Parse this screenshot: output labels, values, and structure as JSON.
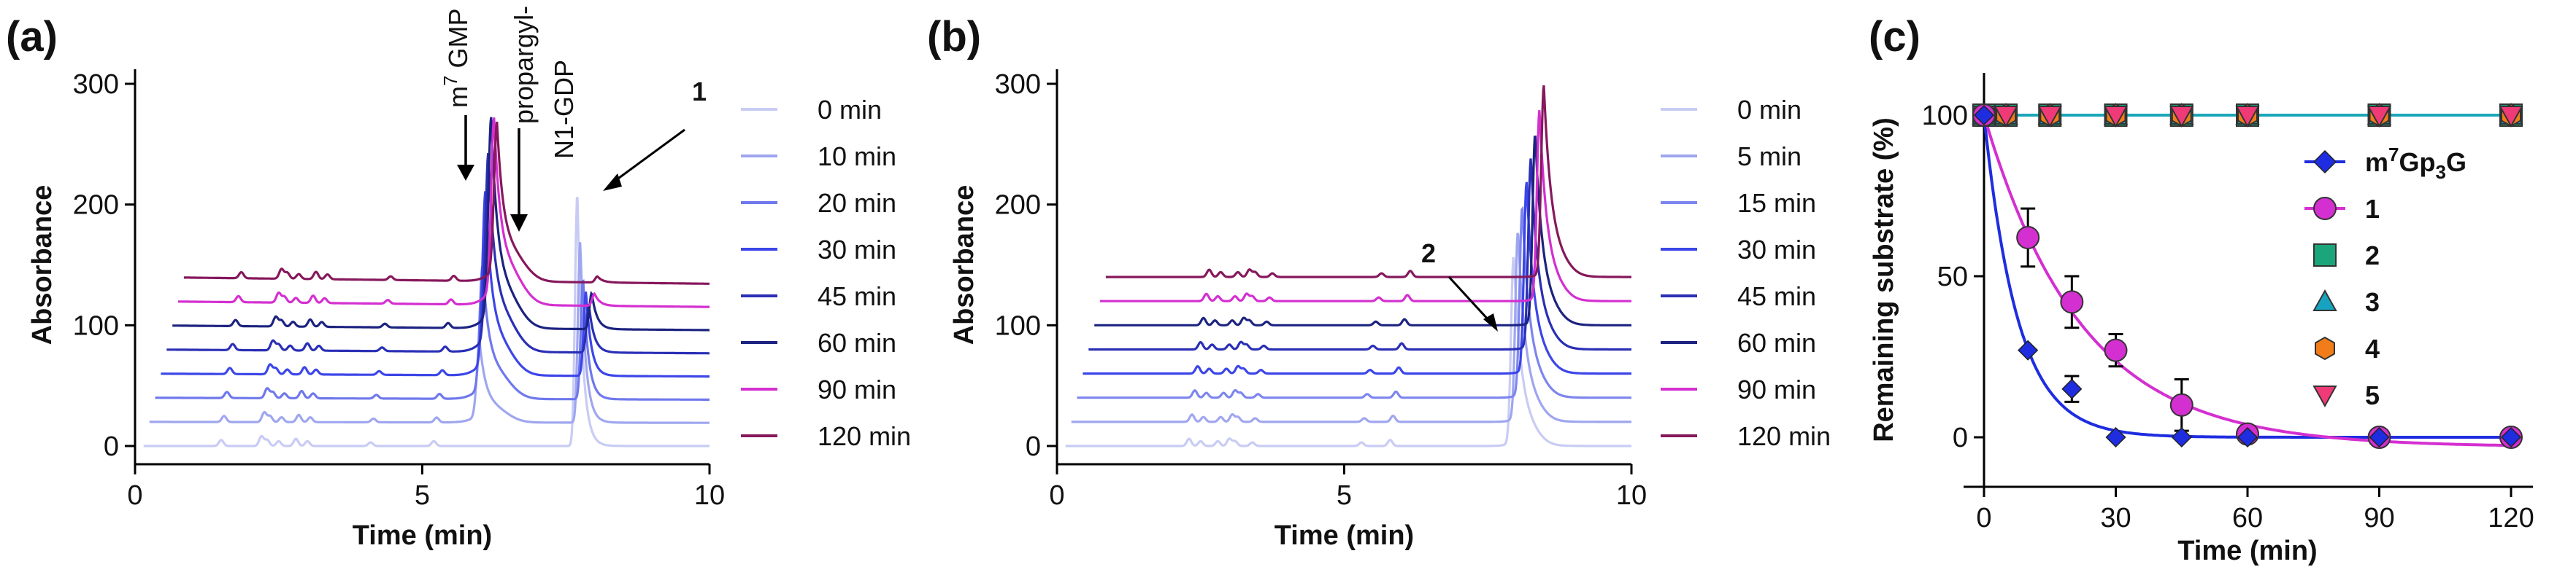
{
  "figure": {
    "panels": [
      {
        "label": "(a)"
      },
      {
        "label": "(b)"
      },
      {
        "label": "(c)"
      }
    ]
  },
  "colors": {
    "0": "#c8ccf4",
    "a10": "#9fa6ef",
    "b5": "#9fa6ef",
    "a20": "#6f78ec",
    "b15": "#7d86ee",
    "30": "#3c46e8",
    "45": "#2a2fb5",
    "60": "#1c2380",
    "90": "#d42fd0",
    "120": "#86185c"
  },
  "chart_data": [
    {
      "type": "line",
      "panel": "(a)",
      "xlabel": "Time (min)",
      "ylabel": "Absorbance",
      "xlim": [
        0,
        10
      ],
      "ylim": [
        0,
        300
      ],
      "xticks": [
        "0",
        "5",
        "10"
      ],
      "yticks": [
        "0",
        "100",
        "200",
        "300"
      ],
      "grid": false,
      "legend": "right",
      "series_offset_step": 20,
      "series": [
        {
          "name": "0 min",
          "offset": 0,
          "color": "#c8ccf4"
        },
        {
          "name": "10 min",
          "offset": 20,
          "color": "#9fa6ef"
        },
        {
          "name": "20 min",
          "offset": 40,
          "color": "#6f78ec"
        },
        {
          "name": "30 min",
          "offset": 60,
          "color": "#3c46e8"
        },
        {
          "name": "45 min",
          "offset": 80,
          "color": "#2a2fb5"
        },
        {
          "name": "60 min",
          "offset": 100,
          "color": "#1c2380"
        },
        {
          "name": "90 min",
          "offset": 120,
          "color": "#d42fd0"
        },
        {
          "name": "120 min",
          "offset": 140,
          "color": "#86185c"
        }
      ],
      "peaks": [
        {
          "x": 1.5,
          "h": 5,
          "w": 0.04
        },
        {
          "x": 2.2,
          "h": 8,
          "w": 0.04
        },
        {
          "x": 2.3,
          "h": 5,
          "w": 0.04
        },
        {
          "x": 2.5,
          "h": 4,
          "w": 0.04
        },
        {
          "x": 2.8,
          "h": 6,
          "w": 0.04
        },
        {
          "x": 3.0,
          "h": 4,
          "w": 0.04
        },
        {
          "x": 4.1,
          "h": 3,
          "w": 0.04
        },
        {
          "x": 5.2,
          "h": 4,
          "w": 0.04
        }
      ],
      "reaction_peaks": [
        {
          "label": "m7GMP",
          "x": 5.95,
          "heights": [
            0,
            60,
            100,
            140,
            150,
            160,
            140,
            120
          ]
        },
        {
          "label": "propargyl-N1-GDP",
          "x": 6.2,
          "heights": [
            0,
            10,
            18,
            22,
            25,
            25,
            25,
            20
          ]
        },
        {
          "label": "1",
          "x": 7.7,
          "heights": [
            210,
            150,
            100,
            70,
            40,
            30,
            10,
            5
          ]
        }
      ],
      "annotations": [
        {
          "text_sup": "7",
          "text_main": "GMP",
          "text_pre": "m",
          "target_x": 5.95,
          "target_y": 235
        },
        {
          "text_line1": "propargyl-",
          "text_line2": "N1-GDP",
          "target_x": 6.65,
          "target_y": 185
        },
        {
          "text": "1",
          "target_x": 8.15,
          "target_y": 220
        }
      ]
    },
    {
      "type": "line",
      "panel": "(b)",
      "xlabel": "Time (min)",
      "ylabel": "Absorbance",
      "xlim": [
        0,
        10
      ],
      "ylim": [
        0,
        300
      ],
      "xticks": [
        "0",
        "5",
        "10"
      ],
      "yticks": [
        "0",
        "100",
        "200",
        "300"
      ],
      "grid": false,
      "legend": "right",
      "series": [
        {
          "name": "0 min",
          "offset": 0,
          "color": "#c8ccf4"
        },
        {
          "name": "5 min",
          "offset": 20,
          "color": "#9fa6ef"
        },
        {
          "name": "15 min",
          "offset": 40,
          "color": "#7d86ee"
        },
        {
          "name": "30 min",
          "offset": 60,
          "color": "#3c46e8"
        },
        {
          "name": "45 min",
          "offset": 80,
          "color": "#2a2fb5"
        },
        {
          "name": "60 min",
          "offset": 100,
          "color": "#1c2380"
        },
        {
          "name": "90 min",
          "offset": 120,
          "color": "#d42fd0"
        },
        {
          "name": "120 min",
          "offset": 140,
          "color": "#86185c"
        }
      ],
      "peaks": [
        {
          "x": 2.3,
          "h": 6,
          "w": 0.04
        },
        {
          "x": 2.5,
          "h": 4,
          "w": 0.04
        },
        {
          "x": 2.8,
          "h": 4,
          "w": 0.04
        },
        {
          "x": 3.0,
          "h": 6,
          "w": 0.04
        },
        {
          "x": 3.1,
          "h": 4,
          "w": 0.04
        },
        {
          "x": 3.4,
          "h": 3,
          "w": 0.04
        },
        {
          "x": 5.3,
          "h": 3,
          "w": 0.04
        },
        {
          "x": 5.8,
          "h": 5,
          "w": 0.04
        }
      ],
      "main_peak": {
        "x": 7.95,
        "height": 155,
        "shift_per_series": 0.075
      },
      "annotations": [
        {
          "text": "2",
          "target_x": 7.75,
          "target_y": 160
        }
      ]
    },
    {
      "type": "scatter",
      "panel": "(c)",
      "xlabel": "Time (min)",
      "ylabel": "Remaining substrate (%)",
      "xlim": [
        0,
        120
      ],
      "ylim": [
        0,
        100
      ],
      "xticks": [
        "0",
        "30",
        "60",
        "90",
        "120"
      ],
      "yticks": [
        "0",
        "50",
        "100"
      ],
      "grid": false,
      "legend": "right",
      "series": [
        {
          "name_pre": "m",
          "name_sup": "7",
          "name_mid": "Gp",
          "name_sub": "3",
          "name_post": "G",
          "marker": "diamond",
          "color": "#1f2de0",
          "x": [
            0,
            10,
            20,
            30,
            45,
            60,
            90,
            120
          ],
          "y": [
            100,
            27,
            15,
            0,
            0,
            0,
            0,
            0
          ],
          "err": [
            0,
            0,
            4,
            0,
            0,
            0,
            0,
            0
          ],
          "fit_k": 0.13,
          "fit_plateau": 0
        },
        {
          "name": "1",
          "marker": "circle",
          "color": "#d42fd0",
          "x": [
            0,
            10,
            20,
            30,
            45,
            60,
            90,
            120
          ],
          "y": [
            100,
            62,
            42,
            27,
            10,
            1,
            0,
            0
          ],
          "err": [
            0,
            9,
            8,
            5,
            8,
            0,
            0,
            0
          ],
          "fit_k": 0.045,
          "fit_plateau": -3
        },
        {
          "name": "2",
          "marker": "square",
          "color": "#1aa67a",
          "x": [
            0,
            5,
            15,
            30,
            45,
            60,
            90,
            120
          ],
          "y": [
            100,
            100,
            100,
            100,
            100,
            100,
            100,
            100
          ]
        },
        {
          "name": "3",
          "marker": "triangle-up",
          "color": "#17a3c0",
          "x": [
            0,
            5,
            15,
            30,
            45,
            60,
            90,
            120
          ],
          "y": [
            100,
            100,
            100,
            100,
            100,
            100,
            100,
            100
          ]
        },
        {
          "name": "4",
          "marker": "hexagon",
          "color": "#f07d1a",
          "x": [
            0,
            5,
            15,
            30,
            45,
            60,
            90,
            120
          ],
          "y": [
            100,
            100,
            100,
            100,
            100,
            100,
            100,
            100
          ]
        },
        {
          "name": "5",
          "marker": "triangle-down",
          "color": "#f03a78",
          "x": [
            0,
            5,
            15,
            30,
            45,
            60,
            90,
            120
          ],
          "y": [
            100,
            100,
            100,
            100,
            100,
            100,
            100,
            100
          ]
        }
      ],
      "reference_line": {
        "y": 100,
        "color": "#1aa6b8"
      }
    }
  ]
}
